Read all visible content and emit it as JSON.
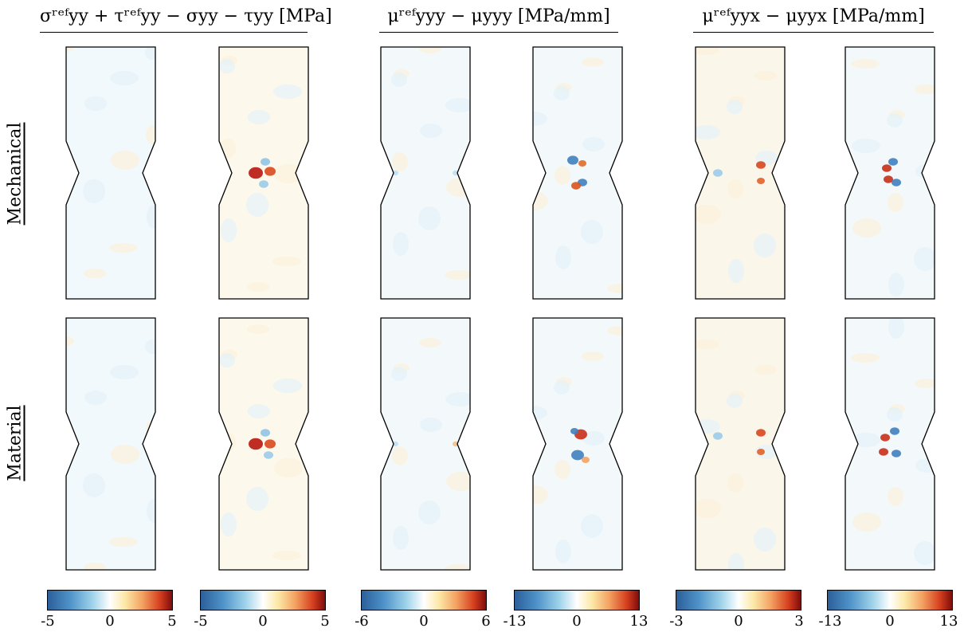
{
  "columns": [
    {
      "title": "σʳᵉᶠyy + τʳᵉᶠyy − σyy − τyy [MPa]"
    },
    {
      "title": "μʳᵉᶠyyy − μyyy [MPa/mm]"
    },
    {
      "title": "μʳᵉᶠyyx − μyyx [MPa/mm]"
    }
  ],
  "rows": [
    {
      "label": "Mechanical"
    },
    {
      "label": "Material"
    }
  ],
  "colorbars": [
    {
      "min": "-5",
      "mid": "0",
      "max": "5"
    },
    {
      "min": "-5",
      "mid": "0",
      "max": "5"
    },
    {
      "min": "-6",
      "mid": "0",
      "max": "6"
    },
    {
      "min": "-13",
      "mid": "0",
      "max": "13"
    },
    {
      "min": "-3",
      "mid": "0",
      "max": "3"
    },
    {
      "min": "-13",
      "mid": "0",
      "max": "13"
    }
  ],
  "colormap": {
    "negative": "#2c5f9a",
    "neutral": "#ffffff",
    "warm": "#f3a262",
    "positive": "#7f0c0c"
  },
  "panels": [
    {
      "tint": "#f1f9fc",
      "spots": []
    },
    {
      "tint": "#fdf8ec",
      "spots": [
        {
          "c": "#b8160f",
          "dx": -10,
          "dy": 0,
          "r": 9
        },
        {
          "c": "#d9481e",
          "dx": 8,
          "dy": -2,
          "r": 7
        },
        {
          "c": "#8fc4e6",
          "dx": 2,
          "dy": -14,
          "r": 6
        },
        {
          "c": "#9ccbe9",
          "dx": 0,
          "dy": 14,
          "r": 6
        }
      ]
    },
    {
      "tint": "#f3f9fb",
      "spots": [
        {
          "c": "#bfe0f0",
          "dx": -38,
          "dy": 0,
          "r": 4
        },
        {
          "c": "#bfe0f0",
          "dx": 38,
          "dy": 0,
          "r": 4
        }
      ]
    },
    {
      "tint": "#f3f9fb",
      "spots": [
        {
          "c": "#3f7fbf",
          "dx": -6,
          "dy": -16,
          "r": 7
        },
        {
          "c": "#e06a2a",
          "dx": 6,
          "dy": -12,
          "r": 5
        },
        {
          "c": "#3f7fbf",
          "dx": 6,
          "dy": 12,
          "r": 6
        },
        {
          "c": "#d8521f",
          "dx": -2,
          "dy": 16,
          "r": 6
        }
      ]
    },
    {
      "tint": "#fbf6ea",
      "spots": [
        {
          "c": "#d8461e",
          "dx": 26,
          "dy": -10,
          "r": 6
        },
        {
          "c": "#e0622a",
          "dx": 26,
          "dy": 10,
          "r": 5
        },
        {
          "c": "#9ccbe9",
          "dx": -28,
          "dy": 0,
          "r": 6
        }
      ]
    },
    {
      "tint": "#f3f9fb",
      "spots": [
        {
          "c": "#3f7fbf",
          "dx": 4,
          "dy": -14,
          "r": 6
        },
        {
          "c": "#c8301a",
          "dx": -4,
          "dy": -6,
          "r": 6
        },
        {
          "c": "#c8301a",
          "dx": -2,
          "dy": 8,
          "r": 6
        },
        {
          "c": "#3f7fbf",
          "dx": 8,
          "dy": 12,
          "r": 6
        }
      ]
    },
    {
      "tint": "#f1f9fc",
      "spots": []
    },
    {
      "tint": "#fdf8ec",
      "spots": [
        {
          "c": "#b8160f",
          "dx": -10,
          "dy": 0,
          "r": 9
        },
        {
          "c": "#d9481e",
          "dx": 8,
          "dy": 0,
          "r": 7
        },
        {
          "c": "#8fc4e6",
          "dx": 2,
          "dy": -14,
          "r": 6
        },
        {
          "c": "#9ccbe9",
          "dx": 6,
          "dy": 14,
          "r": 6
        }
      ]
    },
    {
      "tint": "#f3f9fb",
      "spots": [
        {
          "c": "#bfe0f0",
          "dx": -38,
          "dy": 0,
          "r": 4
        },
        {
          "c": "#f3c08a",
          "dx": 38,
          "dy": 0,
          "r": 4
        }
      ]
    },
    {
      "tint": "#f3f9fb",
      "spots": [
        {
          "c": "#c8301a",
          "dx": 4,
          "dy": -12,
          "r": 8
        },
        {
          "c": "#3f7fbf",
          "dx": -4,
          "dy": -16,
          "r": 5
        },
        {
          "c": "#3f7fbf",
          "dx": 0,
          "dy": 14,
          "r": 8
        },
        {
          "c": "#f3a262",
          "dx": 10,
          "dy": 20,
          "r": 5
        }
      ]
    },
    {
      "tint": "#fbf6ea",
      "spots": [
        {
          "c": "#d8461e",
          "dx": 26,
          "dy": -14,
          "r": 6
        },
        {
          "c": "#e0622a",
          "dx": 26,
          "dy": 10,
          "r": 5
        },
        {
          "c": "#9ccbe9",
          "dx": -28,
          "dy": -10,
          "r": 6
        }
      ]
    },
    {
      "tint": "#f3f9fb",
      "spots": [
        {
          "c": "#3f7fbf",
          "dx": 6,
          "dy": -16,
          "r": 6
        },
        {
          "c": "#c8301a",
          "dx": -6,
          "dy": -8,
          "r": 6
        },
        {
          "c": "#c8301a",
          "dx": -8,
          "dy": 10,
          "r": 6
        },
        {
          "c": "#3f7fbf",
          "dx": 8,
          "dy": 12,
          "r": 6
        }
      ]
    }
  ]
}
